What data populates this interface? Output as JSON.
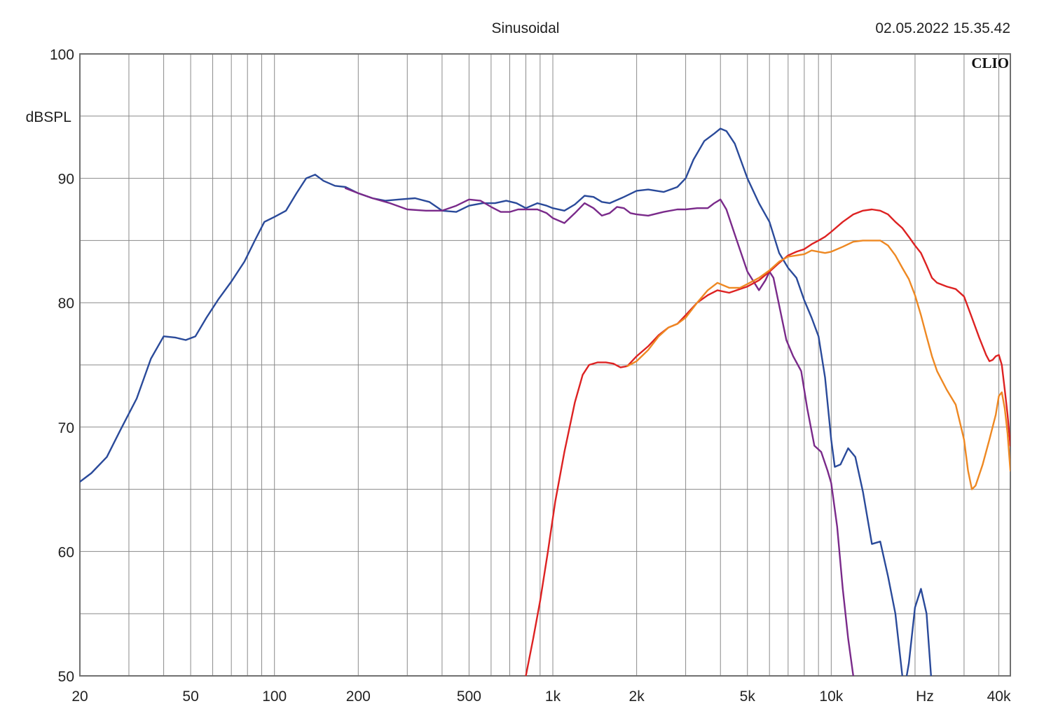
{
  "header": {
    "title": "Sinusoidal",
    "timestamp": "02.05.2022 15.35.42",
    "brand": "CLIO"
  },
  "chart_data": {
    "type": "line",
    "title": "Sinusoidal",
    "ylabel": "dBSPL",
    "xlabel": "Hz",
    "xscale": "log",
    "xlim": [
      20,
      44000
    ],
    "ylim": [
      50,
      100
    ],
    "grid": true,
    "x_ticks": [
      {
        "value": 20,
        "label": "20"
      },
      {
        "value": 50,
        "label": "50"
      },
      {
        "value": 100,
        "label": "100"
      },
      {
        "value": 200,
        "label": "200"
      },
      {
        "value": 500,
        "label": "500"
      },
      {
        "value": 1000,
        "label": "1k"
      },
      {
        "value": 2000,
        "label": "2k"
      },
      {
        "value": 5000,
        "label": "5k"
      },
      {
        "value": 10000,
        "label": "10k"
      },
      {
        "value": 40000,
        "label": "40k"
      }
    ],
    "y_ticks": [
      {
        "value": 100,
        "label": "100"
      },
      {
        "value": 90,
        "label": "90"
      },
      {
        "value": 80,
        "label": "80"
      },
      {
        "value": 70,
        "label": "70"
      },
      {
        "value": 60,
        "label": "60"
      },
      {
        "value": 50,
        "label": "50"
      }
    ],
    "series": [
      {
        "color": "#2a4a9a",
        "points": [
          [
            20,
            65.6
          ],
          [
            22,
            66.3
          ],
          [
            25,
            67.6
          ],
          [
            28,
            69.8
          ],
          [
            32,
            72.3
          ],
          [
            36,
            75.5
          ],
          [
            40,
            77.3
          ],
          [
            44,
            77.2
          ],
          [
            48,
            77
          ],
          [
            52,
            77.3
          ],
          [
            57,
            78.8
          ],
          [
            63,
            80.3
          ],
          [
            70,
            81.7
          ],
          [
            78,
            83.3
          ],
          [
            85,
            85
          ],
          [
            92,
            86.5
          ],
          [
            100,
            86.9
          ],
          [
            110,
            87.4
          ],
          [
            120,
            88.8
          ],
          [
            130,
            90
          ],
          [
            140,
            90.3
          ],
          [
            150,
            89.8
          ],
          [
            165,
            89.4
          ],
          [
            180,
            89.3
          ],
          [
            200,
            88.8
          ],
          [
            225,
            88.4
          ],
          [
            250,
            88.2
          ],
          [
            280,
            88.3
          ],
          [
            320,
            88.4
          ],
          [
            360,
            88.1
          ],
          [
            400,
            87.4
          ],
          [
            450,
            87.3
          ],
          [
            500,
            87.8
          ],
          [
            560,
            88
          ],
          [
            620,
            88
          ],
          [
            680,
            88.2
          ],
          [
            740,
            88
          ],
          [
            800,
            87.6
          ],
          [
            880,
            88
          ],
          [
            950,
            87.8
          ],
          [
            1000,
            87.6
          ],
          [
            1100,
            87.4
          ],
          [
            1200,
            87.9
          ],
          [
            1300,
            88.6
          ],
          [
            1400,
            88.5
          ],
          [
            1500,
            88.1
          ],
          [
            1600,
            88
          ],
          [
            1800,
            88.5
          ],
          [
            2000,
            89
          ],
          [
            2200,
            89.1
          ],
          [
            2500,
            88.9
          ],
          [
            2800,
            89.3
          ],
          [
            3000,
            90
          ],
          [
            3200,
            91.5
          ],
          [
            3500,
            93
          ],
          [
            3800,
            93.6
          ],
          [
            4000,
            94
          ],
          [
            4200,
            93.8
          ],
          [
            4500,
            92.8
          ],
          [
            5000,
            90
          ],
          [
            5500,
            88
          ],
          [
            6000,
            86.5
          ],
          [
            6500,
            84
          ],
          [
            7000,
            82.8
          ],
          [
            7500,
            82
          ],
          [
            8000,
            80.2
          ],
          [
            8500,
            78.8
          ],
          [
            9000,
            77.3
          ],
          [
            9500,
            74
          ],
          [
            10000,
            69
          ],
          [
            10300,
            66.8
          ],
          [
            10800,
            67
          ],
          [
            11500,
            68.3
          ],
          [
            12200,
            67.6
          ],
          [
            13000,
            64.8
          ],
          [
            14000,
            60.6
          ],
          [
            15000,
            60.8
          ],
          [
            16000,
            58
          ],
          [
            17000,
            55
          ],
          [
            18000,
            50
          ],
          [
            18500,
            49.5
          ],
          [
            19000,
            51
          ],
          [
            20000,
            55.5
          ],
          [
            21000,
            57
          ],
          [
            22000,
            55
          ],
          [
            23000,
            49
          ]
        ]
      },
      {
        "color": "#7a2a8a",
        "points": [
          [
            180,
            89.2
          ],
          [
            200,
            88.8
          ],
          [
            225,
            88.4
          ],
          [
            260,
            88
          ],
          [
            300,
            87.5
          ],
          [
            350,
            87.4
          ],
          [
            400,
            87.4
          ],
          [
            450,
            87.8
          ],
          [
            500,
            88.3
          ],
          [
            550,
            88.2
          ],
          [
            600,
            87.7
          ],
          [
            650,
            87.3
          ],
          [
            700,
            87.3
          ],
          [
            750,
            87.5
          ],
          [
            800,
            87.5
          ],
          [
            880,
            87.5
          ],
          [
            950,
            87.2
          ],
          [
            1000,
            86.8
          ],
          [
            1100,
            86.4
          ],
          [
            1200,
            87.2
          ],
          [
            1300,
            88
          ],
          [
            1400,
            87.6
          ],
          [
            1500,
            87
          ],
          [
            1600,
            87.2
          ],
          [
            1700,
            87.7
          ],
          [
            1800,
            87.6
          ],
          [
            1900,
            87.2
          ],
          [
            2000,
            87.1
          ],
          [
            2200,
            87
          ],
          [
            2500,
            87.3
          ],
          [
            2800,
            87.5
          ],
          [
            3000,
            87.5
          ],
          [
            3300,
            87.6
          ],
          [
            3600,
            87.6
          ],
          [
            3800,
            88
          ],
          [
            4000,
            88.3
          ],
          [
            4200,
            87.5
          ],
          [
            4500,
            85.5
          ],
          [
            5000,
            82.5
          ],
          [
            5500,
            81
          ],
          [
            5800,
            81.8
          ],
          [
            6000,
            82.5
          ],
          [
            6200,
            82
          ],
          [
            6500,
            79.8
          ],
          [
            6900,
            77
          ],
          [
            7300,
            75.7
          ],
          [
            7800,
            74.5
          ],
          [
            8200,
            71.5
          ],
          [
            8700,
            68.5
          ],
          [
            9200,
            68
          ],
          [
            9700,
            66.5
          ],
          [
            10000,
            65.5
          ],
          [
            10500,
            62
          ],
          [
            11000,
            57
          ],
          [
            11500,
            53
          ],
          [
            12000,
            50
          ],
          [
            12500,
            49
          ]
        ]
      },
      {
        "color": "#dd2222",
        "points": [
          [
            800,
            50
          ],
          [
            850,
            53
          ],
          [
            900,
            56
          ],
          [
            960,
            60
          ],
          [
            1020,
            64
          ],
          [
            1100,
            68
          ],
          [
            1200,
            72
          ],
          [
            1280,
            74.2
          ],
          [
            1350,
            75
          ],
          [
            1450,
            75.2
          ],
          [
            1550,
            75.2
          ],
          [
            1650,
            75.1
          ],
          [
            1750,
            74.8
          ],
          [
            1850,
            74.9
          ],
          [
            2000,
            75.7
          ],
          [
            2200,
            76.5
          ],
          [
            2400,
            77.4
          ],
          [
            2600,
            78
          ],
          [
            2800,
            78.3
          ],
          [
            3000,
            79
          ],
          [
            3300,
            80
          ],
          [
            3600,
            80.6
          ],
          [
            3900,
            81
          ],
          [
            4300,
            80.8
          ],
          [
            4700,
            81.1
          ],
          [
            5000,
            81.3
          ],
          [
            5500,
            81.8
          ],
          [
            6000,
            82.5
          ],
          [
            6500,
            83.2
          ],
          [
            7000,
            83.8
          ],
          [
            7500,
            84.1
          ],
          [
            8000,
            84.3
          ],
          [
            8500,
            84.7
          ],
          [
            9000,
            85
          ],
          [
            9500,
            85.3
          ],
          [
            10000,
            85.7
          ],
          [
            11000,
            86.5
          ],
          [
            12000,
            87.1
          ],
          [
            13000,
            87.4
          ],
          [
            14000,
            87.5
          ],
          [
            15000,
            87.4
          ],
          [
            16000,
            87.1
          ],
          [
            17000,
            86.5
          ],
          [
            18000,
            86
          ],
          [
            19000,
            85.3
          ],
          [
            20000,
            84.6
          ],
          [
            21000,
            84
          ],
          [
            22000,
            83
          ],
          [
            23000,
            82
          ],
          [
            24000,
            81.6
          ],
          [
            26000,
            81.3
          ],
          [
            28000,
            81.1
          ],
          [
            30000,
            80.5
          ],
          [
            32000,
            78.8
          ],
          [
            34000,
            77.2
          ],
          [
            36000,
            75.8
          ],
          [
            37000,
            75.3
          ],
          [
            38000,
            75.4
          ],
          [
            39000,
            75.7
          ],
          [
            40000,
            75.8
          ],
          [
            41000,
            75
          ],
          [
            42000,
            73
          ],
          [
            43000,
            71
          ],
          [
            44000,
            68.5
          ]
        ]
      },
      {
        "color": "#ee8822",
        "points": [
          [
            1850,
            74.9
          ],
          [
            2000,
            75.3
          ],
          [
            2200,
            76.2
          ],
          [
            2400,
            77.3
          ],
          [
            2600,
            78
          ],
          [
            2800,
            78.3
          ],
          [
            3000,
            78.8
          ],
          [
            3300,
            80
          ],
          [
            3600,
            81
          ],
          [
            3900,
            81.6
          ],
          [
            4300,
            81.2
          ],
          [
            4700,
            81.2
          ],
          [
            5000,
            81.5
          ],
          [
            5500,
            82
          ],
          [
            6000,
            82.6
          ],
          [
            6500,
            83.3
          ],
          [
            7000,
            83.7
          ],
          [
            7500,
            83.8
          ],
          [
            8000,
            83.9
          ],
          [
            8500,
            84.2
          ],
          [
            9000,
            84.1
          ],
          [
            9500,
            84
          ],
          [
            10000,
            84.1
          ],
          [
            11000,
            84.5
          ],
          [
            12000,
            84.9
          ],
          [
            13000,
            85
          ],
          [
            14000,
            85
          ],
          [
            15000,
            85
          ],
          [
            16000,
            84.6
          ],
          [
            17000,
            83.8
          ],
          [
            18000,
            82.8
          ],
          [
            19000,
            81.9
          ],
          [
            20000,
            80.6
          ],
          [
            21000,
            79
          ],
          [
            22000,
            77.3
          ],
          [
            23000,
            75.7
          ],
          [
            24000,
            74.5
          ],
          [
            26000,
            73
          ],
          [
            28000,
            71.8
          ],
          [
            30000,
            69
          ],
          [
            31000,
            66.5
          ],
          [
            32000,
            65
          ],
          [
            33000,
            65.3
          ],
          [
            35000,
            67
          ],
          [
            37000,
            69
          ],
          [
            39000,
            71
          ],
          [
            40000,
            72.5
          ],
          [
            41000,
            72.8
          ],
          [
            42000,
            71.5
          ],
          [
            43000,
            69.5
          ],
          [
            44000,
            66.5
          ]
        ]
      }
    ]
  }
}
